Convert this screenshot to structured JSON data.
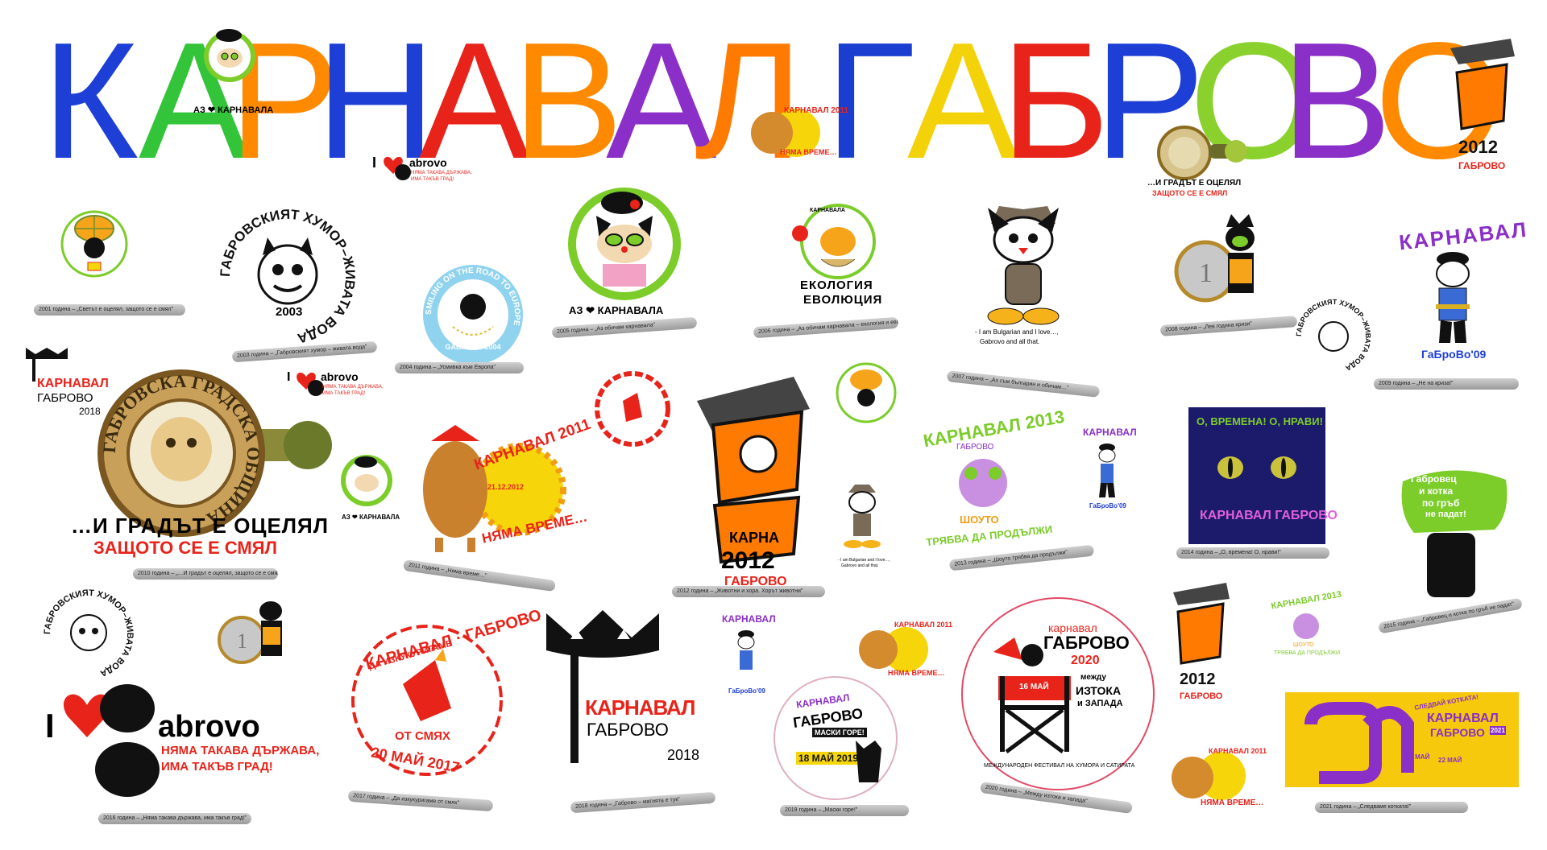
{
  "title": {
    "letters": [
      {
        "ch": "К",
        "color": "#1e3fd6"
      },
      {
        "ch": "А",
        "color": "#33c43a"
      },
      {
        "ch": "Р",
        "color": "#ff8a00"
      },
      {
        "ch": "Н",
        "color": "#1e3fd6"
      },
      {
        "ch": "А",
        "color": "#e8231a"
      },
      {
        "ch": "В",
        "color": "#ff8a00"
      },
      {
        "ch": "А",
        "color": "#8a2fc8"
      },
      {
        "ch": "Л",
        "color": "#ff7a00"
      },
      {
        "ch": "Г",
        "color": "#1a3fd0"
      },
      {
        "ch": "А",
        "color": "#f4d20a"
      },
      {
        "ch": "Б",
        "color": "#e8231a"
      },
      {
        "ch": "Р",
        "color": "#1e3fd6"
      },
      {
        "ch": "О",
        "color": "#8bd12e"
      },
      {
        "ch": "В",
        "color": "#8a2fc8"
      },
      {
        "ch": "О",
        "color": "#ff8a00"
      }
    ]
  },
  "captions": {
    "c2001": "2001 година – „Светът е оцелял, защото се е смял\"",
    "c2003": "2003 година – „Габровският хумор – живата вода\"",
    "c2004": "2004 година – „Усмивка към Европа\"",
    "c2005": "2005 година – „Аз обичам карнавала\"",
    "c2006": "2006 година – „Аз обичам карнавала – екология и еволюция\"",
    "c2007": "2007 година – „Аз съм българин и обичам…\"",
    "c2008": "2008 година – „Лев година кризи\"",
    "c2009": "2009 година – „Не на криза!\"",
    "c2010": "2010 година – „…И градът е оцелял, защото се е смял\"",
    "c2011": "2011 година – „Няма време…\"",
    "c2012": "2012 година – „Животни и хора. Хорът животни\"",
    "c2013": "2013 година – „Шоуто трябва да продължи\"",
    "c2014": "2014 година – „О, времена! О, нрави!\"",
    "c2015": "2015 година – „Габровец и котка по гръб не падат\"",
    "c2016": "2016 година – „Няма такава държава, има такъв град!\"",
    "c2017": "2017 година – „Да изкукуригаме от смях\"",
    "c2018": "2018 година – „Габрово – магията е тук\"",
    "c2019": "2019 година – „Маски горе!\"",
    "c2020": "2020 година – „Между изтока и запада\"",
    "c2021": "2021 година – „Следваме котката!\""
  },
  "logos": {
    "i_gabrovo": {
      "i": "I",
      "g": "abrovo",
      "line1": "НЯМА ТАКАВА ДЪРЖАВА,",
      "line2": "ИМА ТАКЪВ ГРАД!"
    },
    "survived": {
      "line1": "…И ГРАДЪТ Е ОЦЕЛЯЛ",
      "line2": "ЗАЩОТО СЕ Е СМЯЛ"
    },
    "seal_ring": "ГАБРОВСКА ГРАДСКА ОБЩИНА",
    "humor_ring": "ГАБРОВСКИЯТ ХУМОР–ЖИВАТА ВОДА",
    "humor_year": "2003",
    "smiling_ring": "SMILING ON THE ROAD TO EUROPE",
    "smiling_year": "GABROVO 2004",
    "az_karnavala": "АЗ ❤ КАРНАВАЛА",
    "ecology": {
      "top": "КАРНАВАЛА",
      "line1": "ЕКОЛОГИЯ",
      "line2": "ЕВОЛЮЦИЯ"
    },
    "bulgarian": {
      "line1": "- I am Bulgarian and I love…,",
      "line2": "Gabrovo and all that."
    },
    "karnaval09": {
      "word": "КАРНАВАЛ",
      "sub": "ГаБроВо'09"
    },
    "karnaval2011": {
      "title": "КАРНАВАЛ 2011",
      "sub": "НЯМА ВРЕМЕ…",
      "date": "21.12.2012"
    },
    "zhivotni": {
      "year": "2012",
      "word": "КАРНА",
      "city": "ГАБРОВО"
    },
    "karnaval2013": {
      "title": "КАРНАВАЛ 2013",
      "city": "ГАБРОВО",
      "show": "ШОУТО",
      "must": "ТРЯБВА ДА ПРОДЪЛЖИ"
    },
    "vremena": {
      "top": "О, ВРЕМЕНА! О, НРАВИ!",
      "bottom": "КАРНАВАЛ ГАБРОВО"
    },
    "cat_back": {
      "line1": "Габровец",
      "line2": "и котка",
      "line3": "по гръб",
      "line4": "не падат!"
    },
    "karnaval2017": {
      "top": "КАРНАВАЛ · ГАБРОВО",
      "mid": "ДА ИЗКУКУРИГАМЕ",
      "low": "ОТ СМЯХ",
      "date": "20 МАЙ 2017"
    },
    "karnaval2018": {
      "word": "КАРНАВАЛ",
      "city": "ГАБРОВО",
      "year": "2018"
    },
    "karnaval2019": {
      "word": "КАРНАВАЛ",
      "city": "ГАБРОВО",
      "mask": "МАСКИ ГОРЕ!",
      "date": "18 МАЙ 2019"
    },
    "karnaval2020": {
      "word": "карнавал",
      "city": "ГАБРОВО",
      "year": "2020",
      "date": "16 МАЙ",
      "t1": "между",
      "t2": "ИЗТОКА",
      "t3": "и ЗАПАДА",
      "ring": "МЕЖДУНАРОДЕН ФЕСТИВАЛ НА ХУМОРА И САТИРАТА"
    },
    "karnaval2021": {
      "head": "СЛЕДВАЙ КОТКАТА!",
      "word": "КАРНАВАЛ",
      "city": "ГАБРОВО",
      "d1": "21 МАЙ",
      "d2": "22 МАЙ",
      "year": "2021"
    },
    "karnaval2018_small": {
      "word": "КАРНАВАЛ",
      "city": "ГАБРОВО",
      "year": "2018"
    }
  },
  "colors": {
    "cat_black": "#111111",
    "green": "#7ccc2a",
    "orange": "#ff7a00",
    "red": "#e8231a",
    "purple": "#8a2fc8",
    "blue": "#1e3fd6",
    "yellow": "#f6d60a",
    "navy": "#1b1a6b",
    "gold": "#b58a2a",
    "cream": "#f3ead2"
  },
  "icons": [
    "cat-face-icon",
    "heart-icon",
    "stamp-seal-icon",
    "cat-silhouette-icon"
  ]
}
